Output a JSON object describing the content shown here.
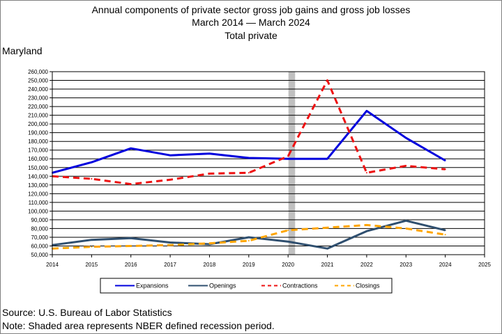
{
  "header": {
    "title_line1": "Annual components of private sector gross job gains and gross job losses",
    "title_line2": "March 2014 — March 2024",
    "title_line3": "Total private",
    "region": "Maryland"
  },
  "footer": {
    "source": "Source: U.S. Bureau of Labor Statistics",
    "note": "Note: Shaded area represents NBER defined recession period."
  },
  "chart_data": {
    "type": "line",
    "title": "Annual components of private sector gross job gains and gross job losses",
    "subtitle": "March 2014 — March 2024 / Total private",
    "region": "Maryland",
    "x": [
      2014,
      2015,
      2016,
      2017,
      2018,
      2019,
      2020,
      2021,
      2022,
      2023,
      2024
    ],
    "xlim": [
      2014,
      2025
    ],
    "x_ticks": [
      "2014",
      "2015",
      "2016",
      "2017",
      "2018",
      "2019",
      "2020",
      "2021",
      "2022",
      "2023",
      "2024",
      "2025"
    ],
    "ylim": [
      50000,
      260000
    ],
    "y_ticks": [
      "50,000",
      "60,000",
      "70,000",
      "80,000",
      "90,000",
      "100,000",
      "110,000",
      "120,000",
      "130,000",
      "140,000",
      "150,000",
      "160,000",
      "170,000",
      "180,000",
      "190,000",
      "200,000",
      "210,000",
      "220,000",
      "230,000",
      "240,000",
      "250,000",
      "260,000"
    ],
    "grid": "horizontal",
    "legend_position": "bottom",
    "recession_shading": {
      "x_start": 2020.0,
      "x_end": 2020.17,
      "color": "#c0c0c0"
    },
    "series": [
      {
        "name": "Expansions",
        "color": "#0000dd",
        "dash": "solid",
        "values": [
          144000,
          156000,
          172000,
          164000,
          166000,
          161000,
          160000,
          160000,
          215000,
          184000,
          158000
        ]
      },
      {
        "name": "Openings",
        "color": "#2f4f6f",
        "dash": "solid",
        "values": [
          61000,
          67000,
          69000,
          64000,
          62000,
          70000,
          65000,
          57000,
          77000,
          89000,
          78000
        ]
      },
      {
        "name": "Contractions",
        "color": "#ee1111",
        "dash": "dashed",
        "values": [
          140000,
          137000,
          131000,
          136000,
          143000,
          144000,
          163000,
          250000,
          144000,
          152000,
          148000
        ]
      },
      {
        "name": "Closings",
        "color": "#ffa500",
        "dash": "dashed",
        "values": [
          57000,
          59000,
          60000,
          61000,
          63000,
          66000,
          78000,
          81000,
          84000,
          80000,
          73000
        ]
      }
    ]
  }
}
